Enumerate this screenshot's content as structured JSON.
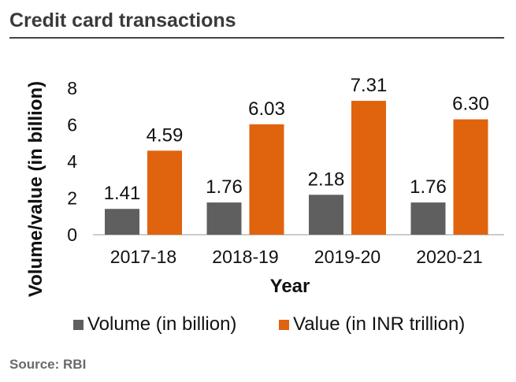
{
  "header": {
    "title": "Credit card transactions"
  },
  "footer": {
    "source": "Source: RBI"
  },
  "chart_data": {
    "type": "bar",
    "title": "Credit card transactions",
    "xlabel": "Year",
    "ylabel": "Volume/value (in billion)",
    "categories": [
      "2017-18",
      "2018-19",
      "2019-20",
      "2020-21"
    ],
    "yticks": [
      0,
      2,
      4,
      6,
      8
    ],
    "ylim": [
      0,
      8
    ],
    "grid": false,
    "legend_placement": "bottom",
    "series": [
      {
        "name": "Volume (in billion)",
        "color": "#5f5f5f",
        "values": [
          1.41,
          1.76,
          2.18,
          1.76
        ],
        "labels": [
          "1.41",
          "1.76",
          "2.18",
          "1.76"
        ]
      },
      {
        "name": "Value (in INR trillion)",
        "color": "#e0630e",
        "values": [
          4.59,
          6.03,
          7.31,
          6.3
        ],
        "labels": [
          "4.59",
          "6.03",
          "7.31",
          "6.30"
        ]
      }
    ]
  }
}
